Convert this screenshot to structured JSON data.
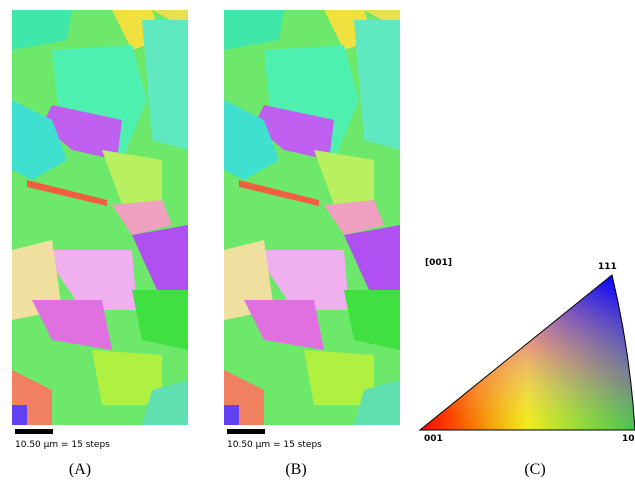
{
  "panels": [
    {
      "scale_bar": "10.50 µm = 15 steps",
      "label": "(A)"
    },
    {
      "scale_bar": "10.50 µm = 15 steps",
      "label": "(B)"
    }
  ],
  "ipf": {
    "label": "(C)",
    "direction": "[001]",
    "vertices": [
      "001",
      "10",
      "111"
    ]
  }
}
